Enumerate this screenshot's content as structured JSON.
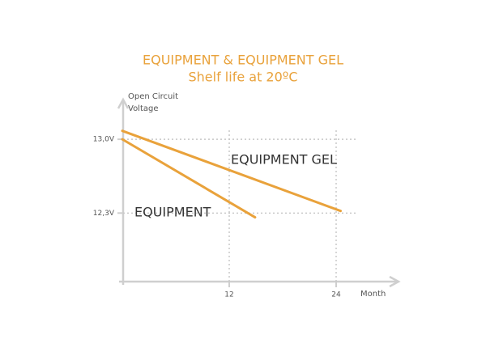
{
  "chart_data": {
    "type": "line",
    "title": "EQUIPMENT & EQUIPMENT GEL",
    "subtitle": "Shelf life at 20ºC",
    "ylabel": [
      "Open Circuit",
      "Voltage"
    ],
    "xlabel": "Month",
    "series": [
      {
        "name": "EQUIPMENT",
        "color": "#e9a23b",
        "x": [
          0,
          14.9
        ],
        "values": [
          13.0,
          12.26
        ]
      },
      {
        "name": "EQUIPMENT GEL",
        "color": "#e9a23b",
        "x": [
          0,
          24.5
        ],
        "values": [
          13.08,
          12.32
        ]
      }
    ],
    "xlim": [
      0,
      31
    ],
    "xticks": [
      12,
      24
    ],
    "ylim": [
      11.65,
      13.4
    ],
    "yticks": [
      {
        "value": 13.0,
        "label": "13,0V"
      },
      {
        "value": 12.3,
        "label": "12,3V"
      }
    ],
    "grid": true
  }
}
